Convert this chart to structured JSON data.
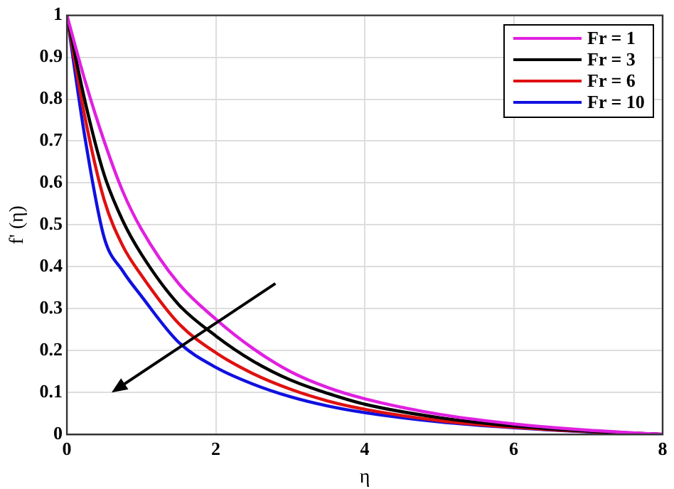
{
  "chart_data": {
    "type": "line",
    "xlabel": "η",
    "ylabel": "f' (η)",
    "xlim": [
      0,
      8
    ],
    "ylim": [
      0,
      1
    ],
    "xticks": [
      0,
      2,
      4,
      6,
      8
    ],
    "yticks": [
      0,
      0.1,
      0.2,
      0.3,
      0.4,
      0.5,
      0.6,
      0.7,
      0.8,
      0.9,
      1
    ],
    "grid": true,
    "legend": "top right",
    "marker": "none",
    "line_style": "solid",
    "x": [
      0,
      0.25,
      0.5,
      0.75,
      1,
      1.5,
      2,
      2.5,
      3,
      3.5,
      4,
      5,
      6,
      7,
      8
    ],
    "series": [
      {
        "name": "Fr = 1",
        "color": "#e020e0",
        "values": [
          1,
          0.84,
          0.7,
          0.58,
          0.49,
          0.36,
          0.275,
          0.205,
          0.15,
          0.112,
          0.085,
          0.048,
          0.025,
          0.01,
          0
        ]
      },
      {
        "name": "Fr = 3",
        "color": "#000000",
        "values": [
          1,
          0.79,
          0.62,
          0.51,
          0.43,
          0.31,
          0.235,
          0.175,
          0.13,
          0.098,
          0.072,
          0.04,
          0.02,
          0.008,
          0
        ]
      },
      {
        "name": "Fr = 6",
        "color": "#e01010",
        "values": [
          1,
          0.75,
          0.56,
          0.45,
          0.38,
          0.265,
          0.195,
          0.145,
          0.108,
          0.08,
          0.06,
          0.033,
          0.017,
          0.007,
          0
        ]
      },
      {
        "name": "Fr = 10",
        "color": "#1010e0",
        "values": [
          1,
          0.7,
          0.47,
          0.39,
          0.33,
          0.22,
          0.16,
          0.12,
          0.09,
          0.068,
          0.052,
          0.03,
          0.016,
          0.006,
          0
        ]
      }
    ]
  }
}
